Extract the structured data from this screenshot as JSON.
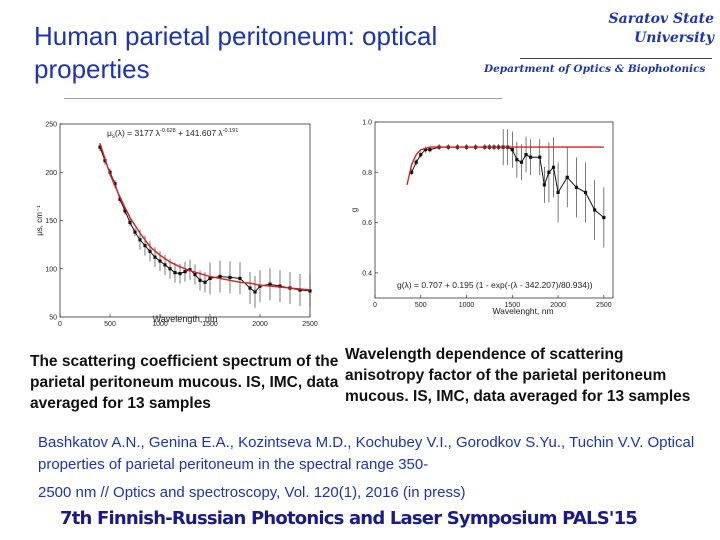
{
  "header": {
    "title": "Human parietal peritoneum: optical properties",
    "university": [
      "Saratov State",
      "University"
    ],
    "department": "Department of Optics & Biophotonics"
  },
  "chart_data": [
    {
      "type": "line",
      "equation": "μ_s(λ) = 3177 λ^-0.628 + 141.607 λ^-0.191",
      "equation_parts": {
        "lhs": "μ",
        "lhs_sub": "s",
        "lhs_arg": "(λ) = 3177 λ",
        "exp1": "-0.628",
        "mid": " + 141.607 λ",
        "exp2": "-0.191"
      },
      "xlabel": "Wavelength, nm",
      "ylabel": "μs, cm⁻¹",
      "xlim": [
        0,
        2500
      ],
      "ylim": [
        50,
        250
      ],
      "xticks": [
        0,
        500,
        1000,
        1500,
        2000,
        2500
      ],
      "yticks": [
        50,
        100,
        150,
        200,
        250
      ],
      "series": [
        {
          "x": [
            400,
            450,
            500,
            550,
            600,
            650,
            700,
            750,
            800,
            850,
            900,
            950,
            1000,
            1050,
            1100,
            1150,
            1200,
            1250,
            1300,
            1350,
            1400,
            1450,
            1500,
            1600,
            1700,
            1800,
            1900,
            1950,
            2000,
            2100,
            2200,
            2300,
            2400,
            2500
          ],
          "y": [
            226,
            212,
            200,
            188,
            172,
            160,
            148,
            138,
            130,
            124,
            118,
            112,
            108,
            104,
            100,
            96,
            95,
            97,
            99,
            94,
            88,
            86,
            90,
            92,
            91,
            90,
            80,
            76,
            82,
            84,
            82,
            80,
            78,
            77
          ]
        },
        {
          "x": [
            400,
            500,
            600,
            700,
            800,
            900,
            1000,
            1100,
            1200,
            1300,
            1400,
            1500,
            1600,
            1700,
            1800,
            1900,
            2000,
            2100,
            2200,
            2300,
            2400,
            2500
          ],
          "y": [
            230,
            198,
            174,
            153,
            137,
            123,
            114,
            107,
            102,
            98,
            95,
            92,
            90,
            88,
            86,
            85,
            83,
            82,
            81,
            80,
            79,
            78
          ]
        }
      ]
    },
    {
      "type": "line",
      "equation": "g(λ) = 0.707 + 0.195 (1 - exp(-(λ - 342.207)/80.934))",
      "xlabel": "Wavelenght, nm",
      "ylabel": "g",
      "xlim": [
        0,
        2600
      ],
      "ylim": [
        0.3,
        1.0
      ],
      "xticks": [
        0,
        500,
        1000,
        1500,
        2000,
        2500
      ],
      "yticks": [
        0.4,
        0.6,
        0.8,
        1.0
      ],
      "series": [
        {
          "x": [
            400,
            450,
            500,
            550,
            600,
            700,
            800,
            900,
            1000,
            1100,
            1200,
            1250,
            1300,
            1350,
            1400,
            1450,
            1500,
            1550,
            1600,
            1650,
            1700,
            1800,
            1850,
            1900,
            1950,
            2000,
            2100,
            2200,
            2300,
            2400,
            2500
          ],
          "y": [
            0.8,
            0.84,
            0.87,
            0.89,
            0.89,
            0.9,
            0.9,
            0.9,
            0.9,
            0.9,
            0.9,
            0.9,
            0.9,
            0.9,
            0.9,
            0.9,
            0.89,
            0.85,
            0.84,
            0.87,
            0.86,
            0.86,
            0.75,
            0.8,
            0.82,
            0.72,
            0.78,
            0.74,
            0.72,
            0.65,
            0.62
          ]
        },
        {
          "x": [
            350,
            400,
            450,
            500,
            600,
            800,
            1000,
            1500,
            2000,
            2500
          ],
          "y": [
            0.75,
            0.83,
            0.87,
            0.89,
            0.9,
            0.9,
            0.9,
            0.9,
            0.9,
            0.9
          ]
        }
      ]
    }
  ],
  "captions": {
    "left": "The scattering coefficient spectrum of the parietal peritoneum mucous. IS, IMC, data averaged for 13 samples",
    "right": "Wavelength dependence of scattering anisotropy factor of the parietal peritoneum mucous. IS, IMC, data averaged for 13 samples"
  },
  "reference": {
    "line1": "Bashkatov A.N., Genina E.A., Kozintseva M.D., Kochubey V.I., Gorodkov S.Yu., Tuchin V.V. Optical properties of parietal peritoneum in the spectral range 350-",
    "line2": "2500 nm // Optics and spectroscopy, Vol. 120(1), 2016 (in press)"
  },
  "footer": "7th Finnish-Russian Photonics and Laser Symposium PALS'15",
  "colors": {
    "accent": "#1c33b5",
    "fit": "#d62020",
    "data": "#111111",
    "footer": "#1a1a8a"
  }
}
